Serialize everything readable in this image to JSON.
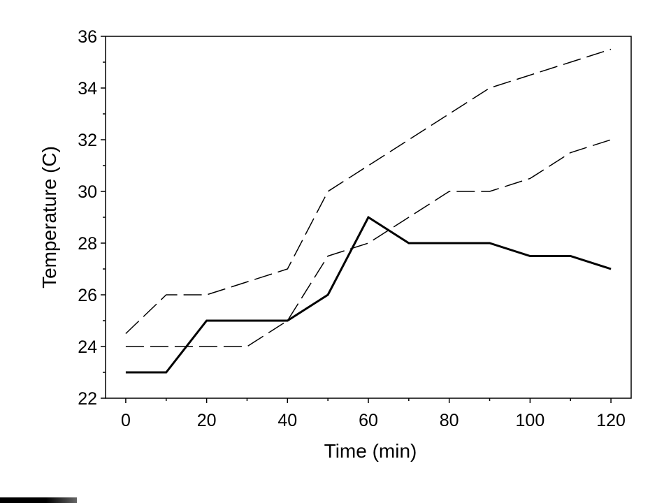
{
  "chart_data": {
    "type": "line",
    "xlabel": "Time (min)",
    "ylabel": "Temperature (C)",
    "xlim": [
      -5,
      125
    ],
    "ylim": [
      22,
      36
    ],
    "x_ticks": [
      0,
      20,
      40,
      60,
      80,
      100,
      120
    ],
    "y_ticks": [
      22,
      24,
      26,
      28,
      30,
      32,
      34,
      36
    ],
    "grid": false,
    "x": [
      0,
      10,
      20,
      30,
      40,
      50,
      60,
      70,
      80,
      90,
      100,
      110,
      120
    ],
    "series": [
      {
        "style": "solid-thick",
        "color": "#000000",
        "values": [
          23,
          23,
          25,
          25,
          25,
          26,
          29,
          28,
          28,
          28,
          27.5,
          27.5,
          27
        ]
      },
      {
        "style": "dashed",
        "color": "#000000",
        "values": [
          24,
          24,
          24,
          24,
          25,
          27.5,
          28,
          29,
          30,
          30,
          30.5,
          31.5,
          32
        ]
      },
      {
        "style": "dashed",
        "color": "#000000",
        "values": [
          24.5,
          26,
          26,
          26.5,
          27,
          30,
          31,
          32,
          33,
          34,
          34.5,
          35,
          35.5
        ]
      }
    ]
  }
}
